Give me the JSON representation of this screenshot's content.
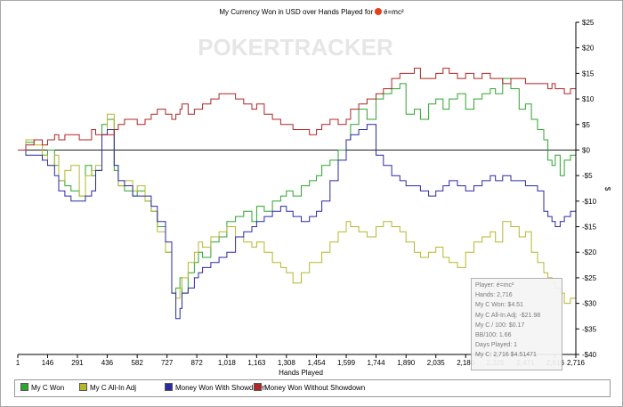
{
  "header": {
    "title_prefix": "My Currency Won in USD over Hands Played for",
    "player": "é=mc²"
  },
  "watermark": "POKERTRACKER",
  "legend": [
    {
      "label": "My C Won",
      "color": "#2ea52e"
    },
    {
      "label": "My C All-In Adj",
      "color": "#b5b82c"
    },
    {
      "label": "Money Won With Showdown",
      "color": "#2a2aa5"
    },
    {
      "label": "Money Won Without Showdown",
      "color": "#b02525"
    }
  ],
  "tooltip": {
    "lines": [
      "Player: é=mc²",
      "Hands: 2,716",
      "My C Won: $4.51",
      "My C All-In Adj: -$21.98",
      "My C / 100: $0.17",
      "BB/100: 1.66",
      "Days Played: 1",
      "My C: 2,716 $4.51471"
    ]
  },
  "chart_data": {
    "type": "line",
    "title": "My Currency Won in USD over Hands Played for é=mc²",
    "xlabel": "Hands Played",
    "ylabel": "$",
    "xlim": [
      1,
      2716
    ],
    "ylim": [
      -40,
      25
    ],
    "x_ticks": [
      1,
      146,
      291,
      436,
      582,
      727,
      872,
      1018,
      1163,
      1308,
      1454,
      1599,
      1744,
      1890,
      2035,
      2180,
      2325,
      2471,
      2616,
      2716
    ],
    "x_tick_labels": [
      "1",
      "146",
      "291",
      "436",
      "582",
      "727",
      "872",
      "1,018",
      "1,163",
      "1,308",
      "1,454",
      "1,599",
      "1,744",
      "1,890",
      "2,035",
      "2,180",
      "2,325",
      "2,471",
      "2,616",
      "2,716"
    ],
    "y_ticks": [
      25,
      20,
      15,
      10,
      5,
      0,
      -5,
      -10,
      -15,
      -20,
      -25,
      -30,
      -35,
      -40
    ],
    "y_tick_labels": [
      "$25",
      "$20",
      "$15",
      "$10",
      "$5",
      "$0",
      "-$5",
      "-$10",
      "-$15",
      "-$20",
      "-$25",
      "-$30",
      "-$35",
      "-$40"
    ],
    "y_axis_side": "right",
    "grid": false,
    "legend_position": "bottom",
    "series": [
      {
        "name": "My C Won",
        "color": "#2ea52e",
        "x": [
          1,
          40,
          80,
          120,
          146,
          180,
          200,
          230,
          260,
          300,
          330,
          360,
          380,
          410,
          436,
          470,
          490,
          520,
          560,
          582,
          620,
          650,
          680,
          720,
          750,
          770,
          790,
          800,
          830,
          860,
          880,
          900,
          940,
          980,
          1018,
          1060,
          1100,
          1140,
          1163,
          1200,
          1240,
          1280,
          1308,
          1340,
          1380,
          1420,
          1454,
          1480,
          1520,
          1560,
          1599,
          1620,
          1660,
          1700,
          1744,
          1780,
          1820,
          1860,
          1890,
          1930,
          1960,
          2000,
          2035,
          2070,
          2100,
          2140,
          2180,
          2220,
          2260,
          2300,
          2325,
          2360,
          2400,
          2440,
          2471,
          2500,
          2530,
          2560,
          2580,
          2600,
          2616,
          2640,
          2660,
          2690,
          2716
        ],
        "y": [
          0,
          1.5,
          2,
          -1,
          0,
          -3,
          -6,
          -7,
          -8,
          -9,
          -3,
          -5,
          -4,
          5,
          6,
          -4,
          -7,
          -8,
          -9,
          -8,
          -10,
          -12,
          -15,
          -20,
          -28,
          -27,
          -25,
          -28,
          -24,
          -22,
          -20,
          -21,
          -18,
          -17,
          -14,
          -13,
          -12,
          -14,
          -11,
          -12,
          -10,
          -9,
          -8,
          -9,
          -7,
          -6,
          -5,
          -3,
          -2,
          0,
          2,
          5,
          8,
          6,
          10,
          11,
          12,
          13,
          7,
          8,
          6,
          9,
          10,
          8,
          10,
          11,
          8,
          10,
          11,
          12,
          11,
          14,
          12,
          8,
          9,
          6,
          4,
          2,
          -2,
          -3,
          -1,
          -5,
          -2,
          -1,
          4.51
        ]
      },
      {
        "name": "My C All-In Adj",
        "color": "#b5b82c",
        "x": [
          1,
          40,
          80,
          120,
          146,
          180,
          200,
          230,
          260,
          300,
          330,
          360,
          380,
          410,
          436,
          470,
          490,
          520,
          560,
          582,
          620,
          650,
          680,
          720,
          750,
          770,
          790,
          800,
          830,
          860,
          880,
          900,
          940,
          980,
          1018,
          1060,
          1100,
          1140,
          1163,
          1200,
          1240,
          1280,
          1308,
          1340,
          1380,
          1420,
          1454,
          1480,
          1520,
          1560,
          1599,
          1620,
          1660,
          1700,
          1744,
          1780,
          1820,
          1860,
          1890,
          1930,
          1960,
          2000,
          2035,
          2070,
          2100,
          2140,
          2180,
          2220,
          2260,
          2300,
          2325,
          2360,
          2400,
          2440,
          2471,
          2500,
          2530,
          2560,
          2580,
          2600,
          2616,
          2640,
          2660,
          2690,
          2716
        ],
        "y": [
          0,
          2,
          1,
          -1,
          -3,
          -1,
          -6,
          -4,
          -3,
          -9,
          -5,
          -4,
          -3,
          3,
          7,
          -3,
          -7,
          -6,
          -8,
          -7,
          -10,
          -12,
          -16,
          -20,
          -28,
          -29,
          -27,
          -25,
          -22,
          -20,
          -18,
          -19,
          -17,
          -16,
          -15,
          -17,
          -18,
          -19,
          -18,
          -20,
          -22,
          -23,
          -24,
          -26,
          -24,
          -22,
          -22,
          -20,
          -18,
          -16,
          -14,
          -15,
          -16,
          -17,
          -15,
          -14,
          -15,
          -16,
          -18,
          -20,
          -21,
          -20,
          -19,
          -21,
          -22,
          -23,
          -20,
          -18,
          -17,
          -16,
          -18,
          -14,
          -15,
          -17,
          -16,
          -20,
          -22,
          -24,
          -25,
          -26,
          -27,
          -28,
          -30,
          -29,
          -21.98
        ]
      },
      {
        "name": "Money Won With Showdown",
        "color": "#2a2aa5",
        "x": [
          1,
          40,
          80,
          120,
          146,
          180,
          200,
          230,
          260,
          300,
          330,
          360,
          380,
          410,
          436,
          470,
          490,
          520,
          560,
          582,
          620,
          650,
          680,
          720,
          750,
          770,
          790,
          800,
          830,
          860,
          880,
          900,
          940,
          980,
          1018,
          1060,
          1100,
          1140,
          1163,
          1200,
          1240,
          1280,
          1308,
          1340,
          1380,
          1420,
          1454,
          1480,
          1520,
          1560,
          1599,
          1620,
          1660,
          1700,
          1744,
          1780,
          1820,
          1860,
          1890,
          1930,
          1960,
          2000,
          2035,
          2070,
          2100,
          2140,
          2180,
          2220,
          2260,
          2300,
          2325,
          2360,
          2400,
          2440,
          2471,
          2500,
          2530,
          2560,
          2580,
          2600,
          2616,
          2640,
          2660,
          2690,
          2716
        ],
        "y": [
          0,
          -1,
          -1,
          -2,
          -3,
          -5,
          -8,
          -9,
          -10,
          -10,
          -9,
          -8,
          -4,
          3,
          4,
          -3,
          -6,
          -7,
          -9,
          -9,
          -9,
          -11,
          -14,
          -18,
          -28,
          -33,
          -31,
          -28,
          -27,
          -25,
          -24,
          -23,
          -22,
          -21,
          -20,
          -17,
          -16,
          -15,
          -14,
          -13,
          -12,
          -11,
          -12,
          -13,
          -14,
          -13,
          -12,
          -10,
          -6,
          -2,
          2,
          3,
          4,
          5,
          -1,
          -3,
          -5,
          -6,
          -7,
          -7,
          -8,
          -9,
          -8,
          -7,
          -6,
          -7,
          -8,
          -7,
          -6,
          -5,
          -6,
          -5,
          -6,
          -6,
          -7,
          -7,
          -8,
          -12,
          -13,
          -14,
          -15,
          -14,
          -13,
          -12,
          -8
        ]
      },
      {
        "name": "Money Won Without Showdown",
        "color": "#b02525",
        "x": [
          1,
          40,
          80,
          120,
          146,
          180,
          200,
          230,
          260,
          300,
          330,
          360,
          380,
          410,
          436,
          470,
          490,
          520,
          560,
          582,
          620,
          650,
          680,
          720,
          750,
          770,
          790,
          800,
          830,
          860,
          880,
          900,
          940,
          980,
          1018,
          1060,
          1100,
          1140,
          1163,
          1200,
          1240,
          1280,
          1308,
          1340,
          1380,
          1420,
          1454,
          1480,
          1520,
          1560,
          1599,
          1620,
          1660,
          1700,
          1744,
          1780,
          1820,
          1860,
          1890,
          1930,
          1960,
          2000,
          2035,
          2070,
          2100,
          2140,
          2180,
          2220,
          2260,
          2300,
          2325,
          2360,
          2400,
          2440,
          2471,
          2500,
          2530,
          2560,
          2580,
          2600,
          2616,
          2640,
          2660,
          2690,
          2716
        ],
        "y": [
          0,
          1,
          2,
          1,
          2,
          3,
          2,
          3,
          3,
          2,
          2,
          4,
          3,
          3,
          3,
          4,
          5,
          6,
          6,
          5,
          6,
          7,
          8,
          7,
          6,
          7,
          8,
          9,
          7,
          8,
          8,
          9,
          10,
          11,
          11,
          10,
          9,
          8,
          9,
          7,
          6,
          5,
          5,
          4,
          4,
          3,
          4,
          5,
          6,
          5,
          6,
          8,
          9,
          10,
          11,
          12,
          14,
          15,
          15,
          16,
          14,
          14,
          15,
          16,
          15,
          14,
          15,
          14,
          15,
          14,
          14,
          13,
          14,
          14,
          13,
          13,
          13,
          13,
          12,
          13,
          12,
          12,
          11,
          12,
          12
        ]
      }
    ]
  }
}
